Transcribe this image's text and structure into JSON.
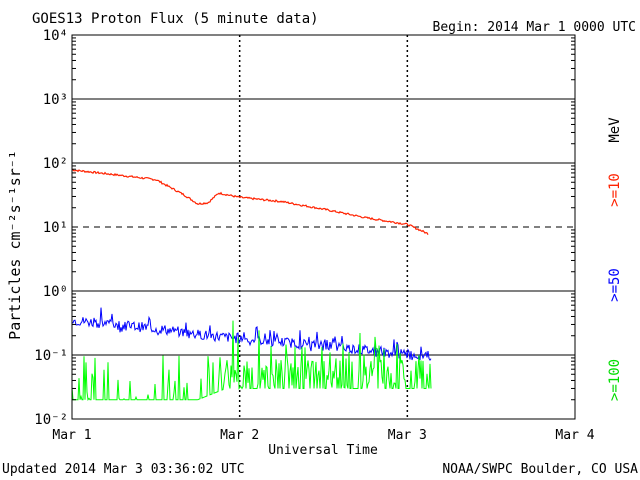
{
  "chart_data": {
    "type": "line",
    "title": "GOES13 Proton Flux (5 minute data)",
    "begin_label": "Begin: 2014 Mar 1 0000 UTC",
    "xlabel": "Universal Time",
    "ylabel": "Particles cm⁻²s⁻¹sr⁻¹",
    "y_scale": "log",
    "ylim": [
      0.01,
      10000
    ],
    "xlim": [
      "2014-03-01",
      "2014-03-04"
    ],
    "x_tick_labels": [
      "Mar 1",
      "Mar 2",
      "Mar 3",
      "Mar 4"
    ],
    "y_tick_labels": [
      "10⁻²",
      "10⁻¹",
      "10⁰",
      "10¹",
      "10²",
      "10³",
      "10⁴"
    ],
    "threshold_line": {
      "y": 10
    },
    "energy_unit": "MeV",
    "grid": "horizontal lines at each decade; dashed vertical markers at day boundaries",
    "series": [
      {
        "name": ">=10",
        "color": "#ff2200",
        "x": [
          "2014-03-01T00:00",
          "2014-03-01T06:00",
          "2014-03-01T12:00",
          "2014-03-01T16:00",
          "2014-03-01T18:00",
          "2014-03-01T19:30",
          "2014-03-01T21:00",
          "2014-03-02T00:00",
          "2014-03-02T06:00",
          "2014-03-02T12:00",
          "2014-03-02T18:00",
          "2014-03-03T00:00",
          "2014-03-03T03:00"
        ],
        "values": [
          78,
          66,
          55,
          32,
          23,
          24,
          34,
          29,
          25,
          19,
          14,
          11,
          7.8
        ]
      },
      {
        "name": ">=50",
        "color": "#0000ff",
        "x": [
          "2014-03-01T00:00",
          "2014-03-01T06:00",
          "2014-03-01T12:00",
          "2014-03-01T18:00",
          "2014-03-02T00:00",
          "2014-03-02T06:00",
          "2014-03-02T12:00",
          "2014-03-02T18:00",
          "2014-03-03T00:00",
          "2014-03-03T03:30"
        ],
        "values": [
          0.35,
          0.3,
          0.26,
          0.21,
          0.18,
          0.16,
          0.14,
          0.12,
          0.1,
          0.1
        ]
      },
      {
        "name": ">=100",
        "color": "#00ff00",
        "x": [
          "2014-03-01T00:00",
          "2014-03-01T18:00",
          "2014-03-01T22:00",
          "2014-03-02T06:00",
          "2014-03-02T12:00",
          "2014-03-02T18:00",
          "2014-03-03T00:00",
          "2014-03-03T03:30"
        ],
        "values": [
          0.02,
          0.02,
          0.03,
          0.03,
          0.03,
          0.03,
          0.03,
          0.03
        ]
      }
    ]
  },
  "footer": {
    "updated": "Updated 2014 Mar  3 03:36:02 UTC",
    "credit": "NOAA/SWPC Boulder, CO USA"
  }
}
